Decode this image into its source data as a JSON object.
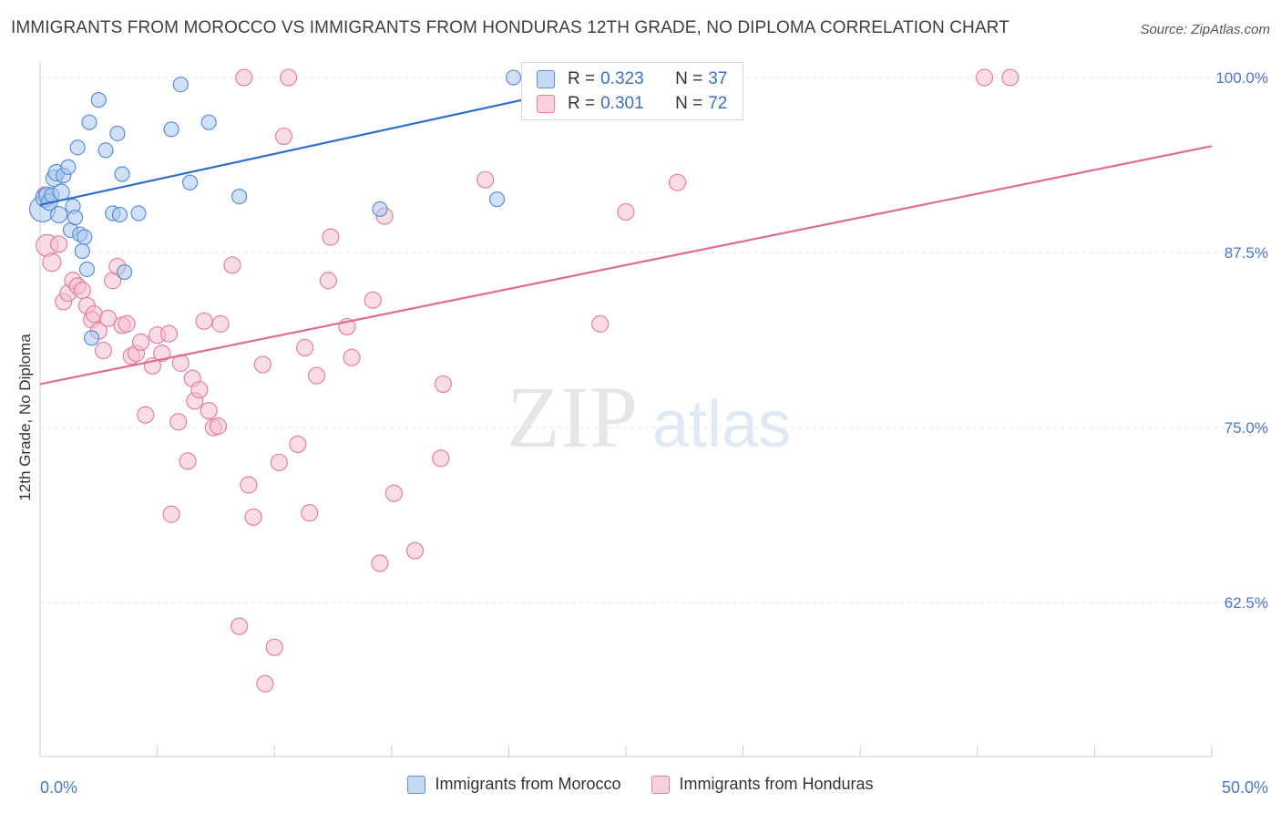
{
  "title": "IMMIGRANTS FROM MOROCCO VS IMMIGRANTS FROM HONDURAS 12TH GRADE, NO DIPLOMA CORRELATION CHART",
  "source": "Source: ZipAtlas.com",
  "watermark": {
    "zip": "ZIP",
    "atlas": "atlas"
  },
  "colors": {
    "blue_fill": "#a9c8f0",
    "blue_stroke": "#5b8fd6",
    "blue_line": "#2f6fcc",
    "pink_fill": "#f6bfd0",
    "pink_stroke": "#e57fa3",
    "pink_line": "#e06a98",
    "axis_text": "#4a78c8",
    "grid": "#e3e3e3"
  },
  "legend_stats": [
    {
      "r_label": "R =",
      "r_value": "0.323",
      "n_label": "N =",
      "n_value": "37"
    },
    {
      "r_label": "R =",
      "r_value": "0.301",
      "n_label": "N =",
      "n_value": "72"
    }
  ],
  "chart_data": {
    "type": "scatter",
    "title": "IMMIGRANTS FROM MOROCCO VS IMMIGRANTS FROM HONDURAS 12TH GRADE, NO DIPLOMA CORRELATION CHART",
    "xlabel": "",
    "ylabel": "12th Grade, No Diploma",
    "xlim": [
      0,
      50
    ],
    "ylim": [
      51.5,
      101.5
    ],
    "x_tick_labels": [
      "0.0%",
      "50.0%"
    ],
    "y_ticks": [
      100,
      87.5,
      75,
      62.5
    ],
    "y_tick_labels": [
      "100.0%",
      "87.5%",
      "75.0%",
      "62.5%"
    ],
    "grid": true,
    "legend_position": "bottom",
    "series": [
      {
        "name": "Immigrants from Morocco",
        "color": "blue",
        "trend": {
          "x0": 0,
          "y0": 90.9,
          "x1": 25.8,
          "y1": 100.3
        },
        "points": [
          [
            0.1,
            90.6,
            14
          ],
          [
            0.2,
            91.4,
            10
          ],
          [
            0.3,
            91.6,
            9
          ],
          [
            0.4,
            91.1,
            9
          ],
          [
            0.5,
            91.6,
            8
          ],
          [
            0.6,
            92.8,
            9
          ],
          [
            0.7,
            93.2,
            9
          ],
          [
            0.8,
            90.2,
            9
          ],
          [
            0.9,
            91.8,
            9
          ],
          [
            1.0,
            93.0,
            8
          ],
          [
            1.2,
            93.6,
            8
          ],
          [
            1.3,
            89.1,
            8
          ],
          [
            1.4,
            90.8,
            8
          ],
          [
            1.5,
            90.0,
            8
          ],
          [
            1.6,
            95.0,
            8
          ],
          [
            1.7,
            88.8,
            8
          ],
          [
            1.8,
            87.6,
            8
          ],
          [
            1.9,
            88.6,
            8
          ],
          [
            2.0,
            86.3,
            8
          ],
          [
            2.1,
            96.8,
            8
          ],
          [
            2.2,
            81.4,
            8
          ],
          [
            2.5,
            98.4,
            8
          ],
          [
            2.8,
            94.8,
            8
          ],
          [
            3.1,
            90.3,
            8
          ],
          [
            3.3,
            96.0,
            8
          ],
          [
            3.4,
            90.2,
            8
          ],
          [
            3.5,
            93.1,
            8
          ],
          [
            3.6,
            86.1,
            8
          ],
          [
            4.2,
            90.3,
            8
          ],
          [
            5.6,
            96.3,
            8
          ],
          [
            6.0,
            99.5,
            8
          ],
          [
            6.4,
            92.5,
            8
          ],
          [
            7.2,
            96.8,
            8
          ],
          [
            8.5,
            91.5,
            8
          ],
          [
            14.5,
            90.6,
            8
          ],
          [
            19.5,
            91.3,
            8
          ],
          [
            20.2,
            100.0,
            8
          ]
        ]
      },
      {
        "name": "Immigrants from Honduras",
        "color": "pink",
        "trend": {
          "x0": 0,
          "y0": 78.1,
          "x1": 50,
          "y1": 95.1
        },
        "points": [
          [
            0.2,
            91.6,
            9
          ],
          [
            0.3,
            88.0,
            12
          ],
          [
            0.5,
            86.8,
            10
          ],
          [
            0.8,
            88.1,
            9
          ],
          [
            1.0,
            84.0,
            9
          ],
          [
            1.2,
            84.6,
            9
          ],
          [
            1.4,
            85.5,
            9
          ],
          [
            1.6,
            85.1,
            9
          ],
          [
            1.8,
            84.8,
            9
          ],
          [
            2.0,
            83.7,
            9
          ],
          [
            2.2,
            82.7,
            9
          ],
          [
            2.3,
            83.1,
            9
          ],
          [
            2.5,
            81.9,
            9
          ],
          [
            2.7,
            80.5,
            9
          ],
          [
            2.9,
            82.8,
            9
          ],
          [
            3.1,
            85.5,
            9
          ],
          [
            3.3,
            86.5,
            9
          ],
          [
            3.5,
            82.3,
            9
          ],
          [
            3.7,
            82.4,
            9
          ],
          [
            3.9,
            80.1,
            9
          ],
          [
            4.1,
            80.3,
            9
          ],
          [
            4.3,
            81.1,
            9
          ],
          [
            4.5,
            75.9,
            9
          ],
          [
            4.8,
            79.4,
            9
          ],
          [
            5.0,
            81.6,
            9
          ],
          [
            5.2,
            80.3,
            9
          ],
          [
            5.5,
            81.7,
            9
          ],
          [
            5.6,
            68.8,
            9
          ],
          [
            5.9,
            75.4,
            9
          ],
          [
            6.0,
            79.6,
            9
          ],
          [
            6.3,
            72.6,
            9
          ],
          [
            6.5,
            78.5,
            9
          ],
          [
            6.6,
            76.9,
            9
          ],
          [
            6.8,
            77.7,
            9
          ],
          [
            7.0,
            82.6,
            9
          ],
          [
            7.2,
            76.2,
            9
          ],
          [
            7.4,
            75.0,
            9
          ],
          [
            7.6,
            75.1,
            9
          ],
          [
            7.7,
            82.4,
            9
          ],
          [
            8.2,
            86.6,
            9
          ],
          [
            8.5,
            60.8,
            9
          ],
          [
            8.7,
            100.0,
            9
          ],
          [
            8.9,
            70.9,
            9
          ],
          [
            9.1,
            68.6,
            9
          ],
          [
            9.5,
            79.5,
            9
          ],
          [
            9.6,
            56.7,
            9
          ],
          [
            10.0,
            59.3,
            9
          ],
          [
            10.2,
            72.5,
            9
          ],
          [
            10.4,
            95.8,
            9
          ],
          [
            10.6,
            100.0,
            9
          ],
          [
            11.0,
            73.8,
            9
          ],
          [
            11.3,
            80.7,
            9
          ],
          [
            11.5,
            68.9,
            9
          ],
          [
            11.8,
            78.7,
            9
          ],
          [
            12.3,
            85.5,
            9
          ],
          [
            12.4,
            88.6,
            9
          ],
          [
            13.1,
            82.2,
            9
          ],
          [
            13.3,
            80.0,
            9
          ],
          [
            14.2,
            84.1,
            9
          ],
          [
            14.5,
            65.3,
            9
          ],
          [
            14.7,
            90.1,
            9
          ],
          [
            15.1,
            70.3,
            9
          ],
          [
            16.0,
            66.2,
            9
          ],
          [
            17.1,
            72.8,
            9
          ],
          [
            17.2,
            78.1,
            9
          ],
          [
            19.0,
            92.7,
            9
          ],
          [
            23.9,
            82.4,
            9
          ],
          [
            25.0,
            90.4,
            9
          ],
          [
            27.2,
            92.5,
            9
          ],
          [
            28.2,
            100.0,
            9
          ],
          [
            40.3,
            100.0,
            9
          ],
          [
            41.4,
            100.0,
            9
          ]
        ]
      }
    ]
  }
}
